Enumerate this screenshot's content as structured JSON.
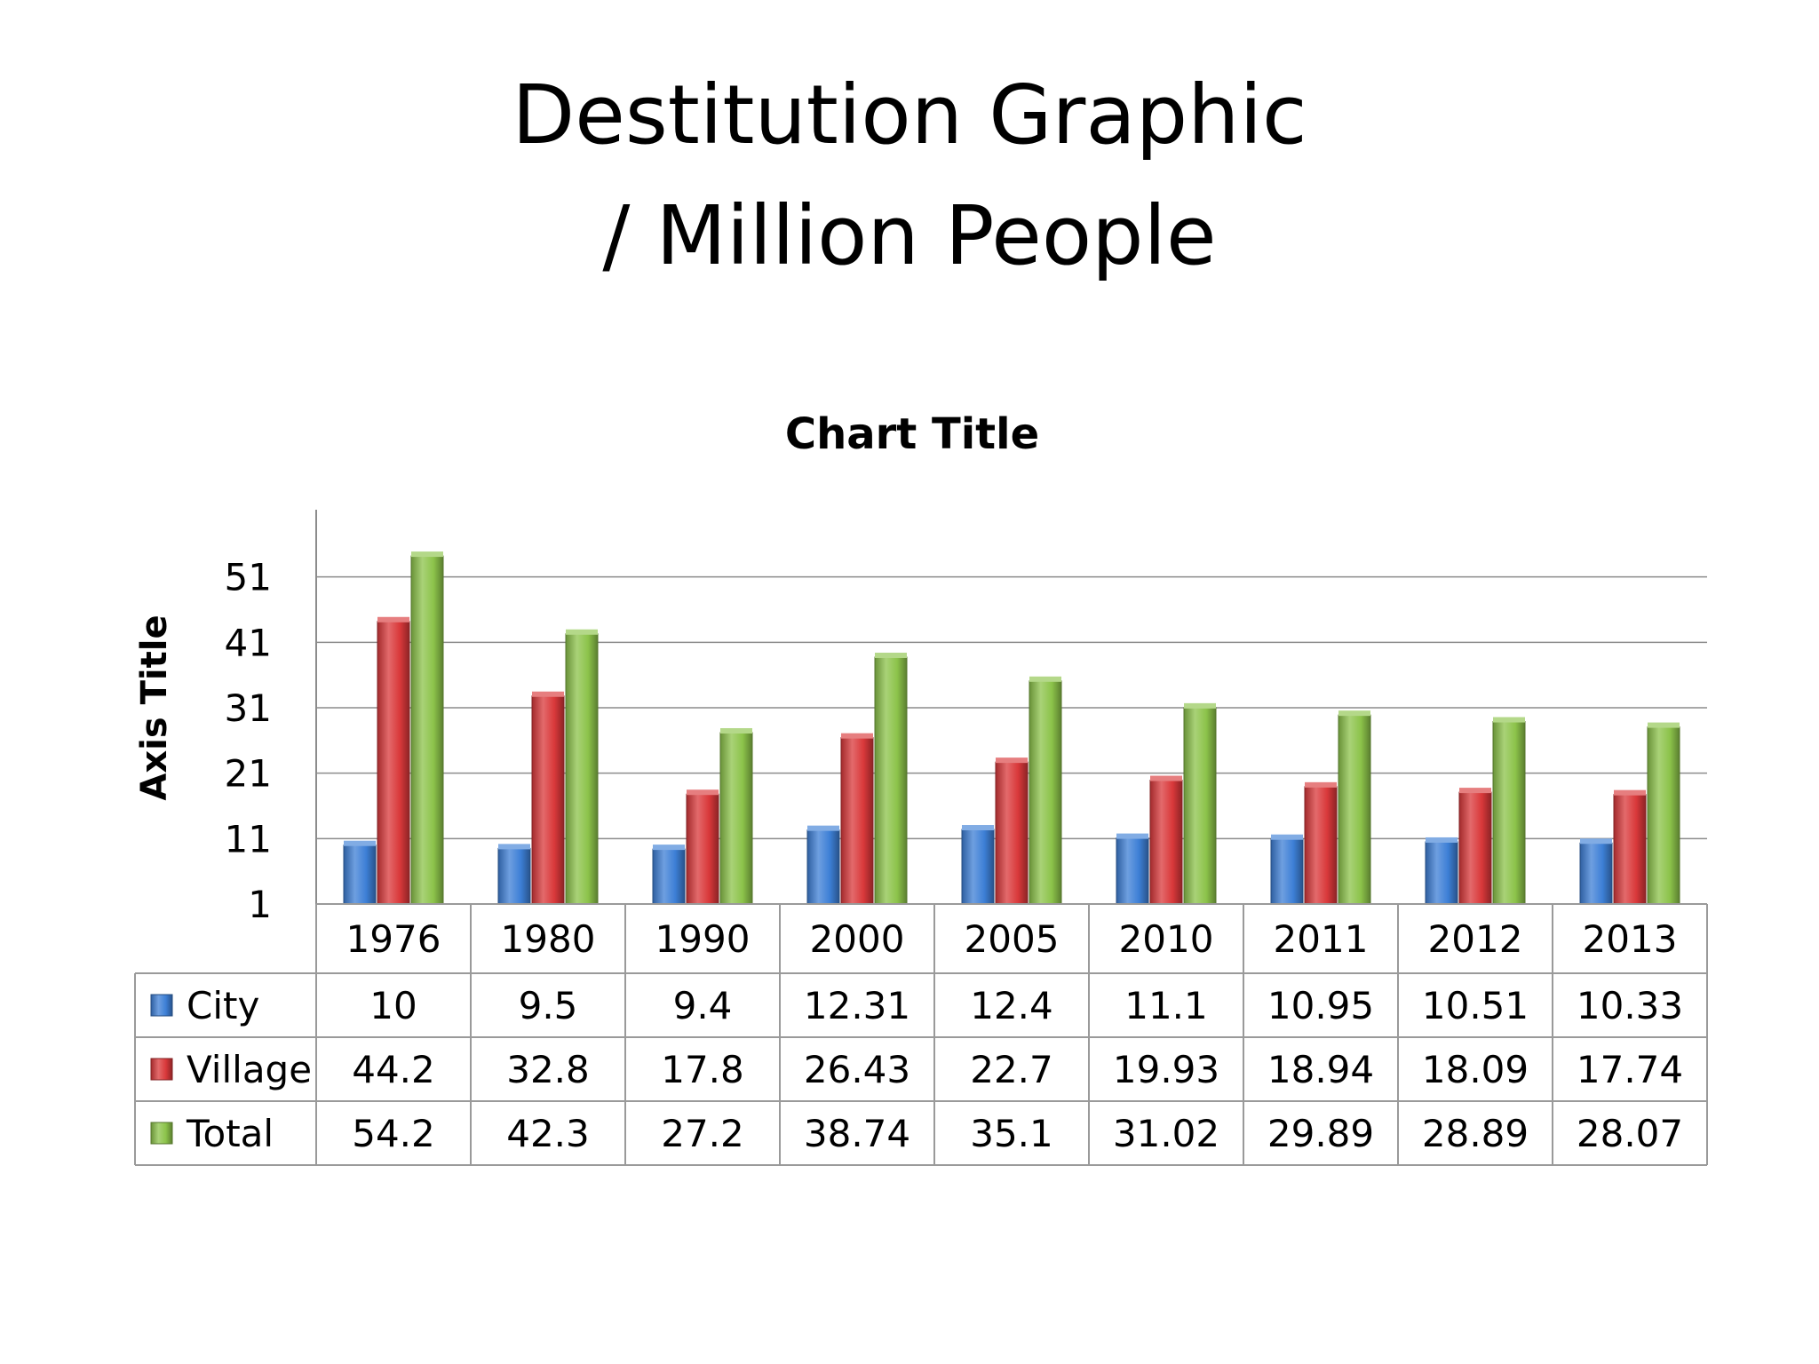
{
  "slide": {
    "title_line1": "Destitution Graphic",
    "title_line2": "/ Million People"
  },
  "chart_data": {
    "type": "bar",
    "title": "Chart Title",
    "ylabel": "Axis Title",
    "xlabel": "",
    "ylim": [
      1,
      61
    ],
    "yticks": [
      1,
      11,
      21,
      31,
      41,
      51
    ],
    "grid": true,
    "legend": "data-table",
    "categories": [
      "1976",
      "1980",
      "1990",
      "2000",
      "2005",
      "2010",
      "2011",
      "2012",
      "2013"
    ],
    "series": [
      {
        "name": "City",
        "color": "#3d7fd6",
        "values": [
          10,
          9.5,
          9.4,
          12.31,
          12.4,
          11.1,
          10.95,
          10.51,
          10.33
        ],
        "labels": [
          "10",
          "9.5",
          "9.4",
          "12.31",
          "12.4",
          "11.1",
          "10.95",
          "10.51",
          "10.33"
        ]
      },
      {
        "name": "Village",
        "color": "#d9383a",
        "values": [
          44.2,
          32.8,
          17.8,
          26.43,
          22.7,
          19.93,
          18.94,
          18.09,
          17.74
        ],
        "labels": [
          "44.2",
          "32.8",
          "17.8",
          "26.43",
          "22.7",
          "19.93",
          "18.94",
          "18.09",
          "17.74"
        ]
      },
      {
        "name": "Total",
        "color": "#8cc34a",
        "values": [
          54.2,
          42.3,
          27.2,
          38.74,
          35.1,
          31.02,
          29.89,
          28.89,
          28.07
        ],
        "labels": [
          "54.2",
          "42.3",
          "27.2",
          "38.74",
          "35.1",
          "31.02",
          "29.89",
          "28.89",
          "28.07"
        ]
      }
    ]
  }
}
